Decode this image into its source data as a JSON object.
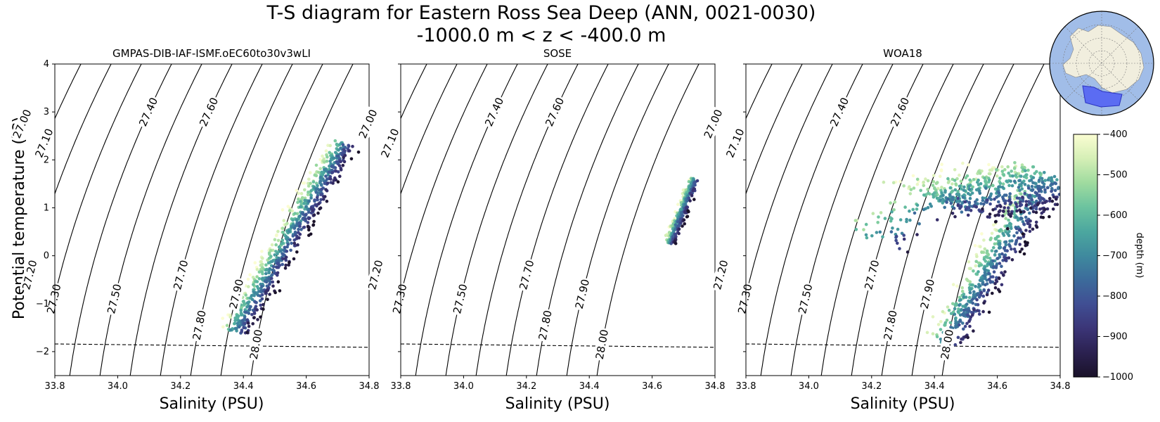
{
  "chart_data": {
    "type": "scatter",
    "title_line1": "T-S diagram for Eastern Ross Sea Deep (ANN, 0021-0030)",
    "title_line2": "-1000.0 m < z < -400.0 m",
    "xlabel": "Salinity (PSU)",
    "ylabel": "Potential temperature (°C)",
    "ylabel_parts": {
      "pre": "Potential temperature (",
      "deg": "°",
      "post": "C)"
    },
    "xlim": [
      33.8,
      34.8
    ],
    "ylim": [
      -2.5,
      4
    ],
    "x_ticks": [
      "33.8",
      "34.0",
      "34.2",
      "34.4",
      "34.6",
      "34.8"
    ],
    "y_ticks": [
      "4",
      "3",
      "2",
      "1",
      "0",
      "−1",
      "−2"
    ],
    "freezing_line": {
      "s": [
        33.8,
        34.8
      ],
      "t": [
        -1.84,
        -1.91
      ]
    },
    "density_contours": [
      {
        "label": "27.00",
        "k": 0
      },
      {
        "label": "27.10",
        "k": 1
      },
      {
        "label": "27.20",
        "k": 2
      },
      {
        "label": "27.30",
        "k": 3
      },
      {
        "label": "27.40",
        "k": 4
      },
      {
        "label": "27.50",
        "k": 5
      },
      {
        "label": "27.60",
        "k": 6
      },
      {
        "label": "27.70",
        "k": 7
      },
      {
        "label": "27.80",
        "k": 8
      },
      {
        "label": "27.90",
        "k": 9
      },
      {
        "label": "28.00",
        "k": 10
      }
    ],
    "panels": [
      {
        "title": "GMPAS-DIB-IAF-ISMF.oEC60to30v3wLI",
        "clusters": [
          {
            "s": [
              34.37,
              34.72
            ],
            "t": [
              -1.6,
              2.35
            ],
            "w": 0.06,
            "n": 700
          }
        ]
      },
      {
        "title": "SOSE",
        "clusters": [
          {
            "s": [
              34.655,
              34.735
            ],
            "t": [
              0.25,
              1.6
            ],
            "w": 0.025,
            "n": 260
          }
        ]
      },
      {
        "title": "WOA18",
        "clusters": [
          {
            "s": [
              34.42,
              34.8
            ],
            "t": [
              1.1,
              1.6
            ],
            "w": 0.25,
            "n": 520
          },
          {
            "s": [
              34.43,
              34.72
            ],
            "t": [
              -1.8,
              1.3
            ],
            "w": 0.09,
            "n": 500
          },
          {
            "s": [
              34.2,
              34.45
            ],
            "t": [
              0.3,
              1.3
            ],
            "w": 0.18,
            "n": 70
          }
        ]
      }
    ],
    "colorbar": {
      "label": "depth (m)",
      "range": [
        -1000,
        -400
      ],
      "ticks": [
        "−400",
        "−500",
        "−600",
        "−700",
        "−800",
        "−900",
        "−1000"
      ],
      "colormap": [
        "#fbfdd2",
        "#d5efb6",
        "#9fdb9f",
        "#6cc39f",
        "#4ca79f",
        "#3f8a9e",
        "#3c6b9b",
        "#404e93",
        "#3b3577",
        "#2b2150",
        "#1a1229"
      ]
    },
    "inset_map": {
      "ocean_color": "#a1bde8",
      "land_color": "#f1eede",
      "region_color": "#5b6cf2"
    }
  }
}
